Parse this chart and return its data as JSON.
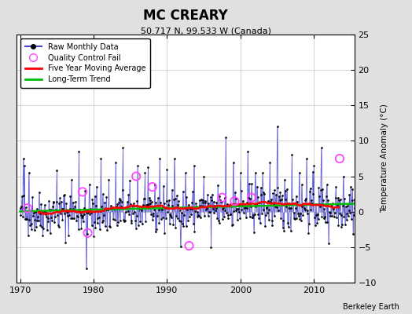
{
  "title": "MC CREARY",
  "subtitle": "50.717 N, 99.533 W (Canada)",
  "ylabel": "Temperature Anomaly (°C)",
  "attribution": "Berkeley Earth",
  "xlim": [
    1969.5,
    2015.5
  ],
  "ylim": [
    -10,
    25
  ],
  "yticks": [
    -10,
    -5,
    0,
    5,
    10,
    15,
    20,
    25
  ],
  "xticks": [
    1970,
    1980,
    1990,
    2000,
    2010
  ],
  "bg_color": "#e0e0e0",
  "plot_bg_color": "#ffffff",
  "raw_color": "#4444cc",
  "ma_color": "#ff0000",
  "trend_color": "#00bb00",
  "qc_color": "#ff44ff",
  "seed": 42,
  "n_years": 46,
  "start_year": 1970
}
